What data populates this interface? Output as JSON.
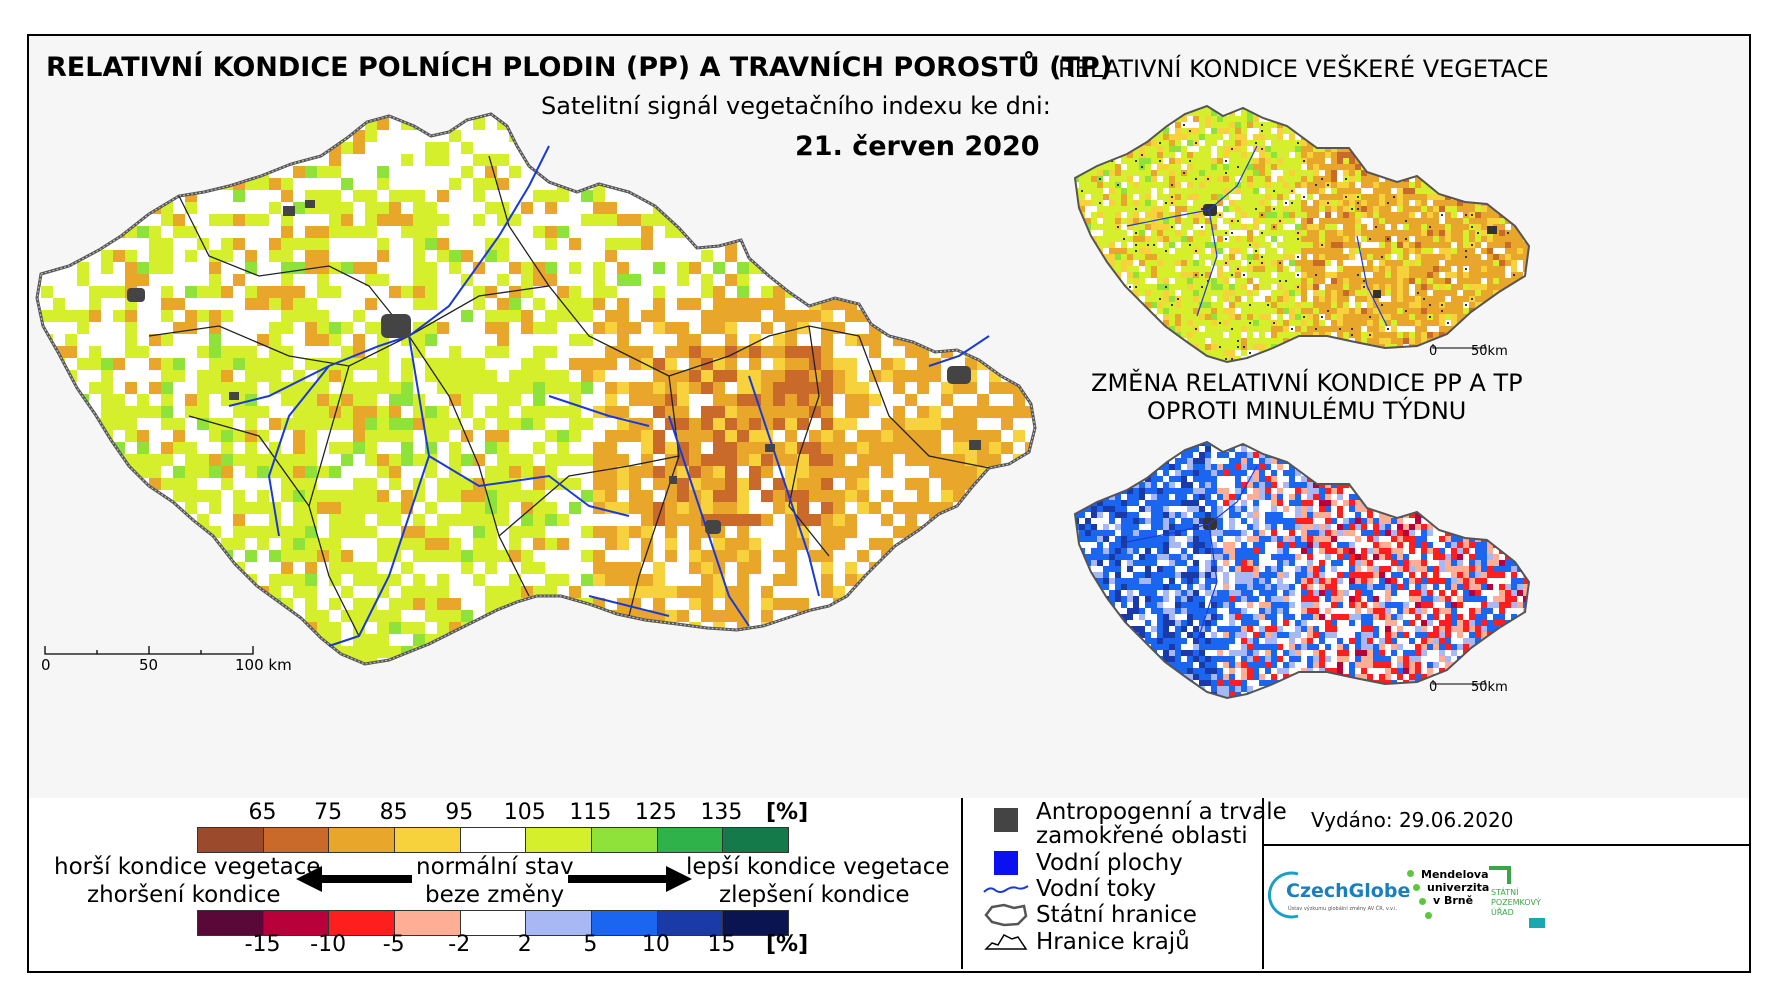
{
  "main_title": "RELATIVNÍ KONDICE POLNÍCH PLODIN (PP) A TRAVNÍCH POROSTŮ (TP)",
  "subtitle": "Satelitní signál vegetačního indexu ke dni:",
  "date": "21. červen 2020",
  "right_top_title": "RELATIVNÍ KONDICE VEŠKERÉ VEGETACE",
  "right_bottom_title_line1": "ZMĚNA RELATIVNÍ KONDICE PP A TP",
  "right_bottom_title_line2": "OPROTI MINULÉMU TÝDNU",
  "main_scale": {
    "zero": "0",
    "mid": "50",
    "end": "100 km"
  },
  "small_scale": {
    "zero": "0",
    "end": "50km"
  },
  "condition_scale": {
    "ticks": [
      "65",
      "75",
      "85",
      "95",
      "105",
      "115",
      "125",
      "135"
    ],
    "unit": "[%]",
    "colors": [
      "#9b4a2c",
      "#c96a2a",
      "#e8a62a",
      "#f7d23c",
      "#ffffff",
      "#d6ef2c",
      "#8ee23a",
      "#2fb24a",
      "#157a4a"
    ]
  },
  "change_scale": {
    "ticks": [
      "-15",
      "-10",
      "-5",
      "-2",
      "2",
      "5",
      "10",
      "15"
    ],
    "unit": "[%]",
    "colors": [
      "#5a0838",
      "#b8003a",
      "#ff1e1e",
      "#ffae96",
      "#ffffff",
      "#a8b8f4",
      "#1a66f0",
      "#1a3aa8",
      "#0a1450"
    ]
  },
  "arrows": {
    "left_top": "horší kondice vegetace",
    "left_bottom": "zhoršení kondice",
    "center_top": "normální stav",
    "center_bottom": "beze změny",
    "right_top": "lepší kondice vegetace",
    "right_bottom": "zlepšení kondice"
  },
  "map_key": [
    {
      "icon": "anthropogenic-square-icon",
      "label_line1": "Antropogenní a trvale",
      "label_line2": "zamokřené oblasti"
    },
    {
      "icon": "water-square-icon",
      "label_line1": "Vodní plochy"
    },
    {
      "icon": "river-line-icon",
      "label_line1": "Vodní toky"
    },
    {
      "icon": "state-border-icon",
      "label_line1": "Státní hranice"
    },
    {
      "icon": "region-border-icon",
      "label_line1": "Hranice krajů"
    }
  ],
  "issued": "Vydáno: 29.06.2020",
  "logos": {
    "czechglobe": "CzechGlobe",
    "czechglobe_sub": "Ústav výzkumu globální změny AV ČR, v.v.i.",
    "mendelu_1": "Mendelova",
    "mendelu_2": "univerzita",
    "mendelu_3": "v Brně",
    "spu_1": "STÁTNÍ",
    "spu_2": "POZEMKOVÝ",
    "spu_3": "ÚŘAD"
  }
}
